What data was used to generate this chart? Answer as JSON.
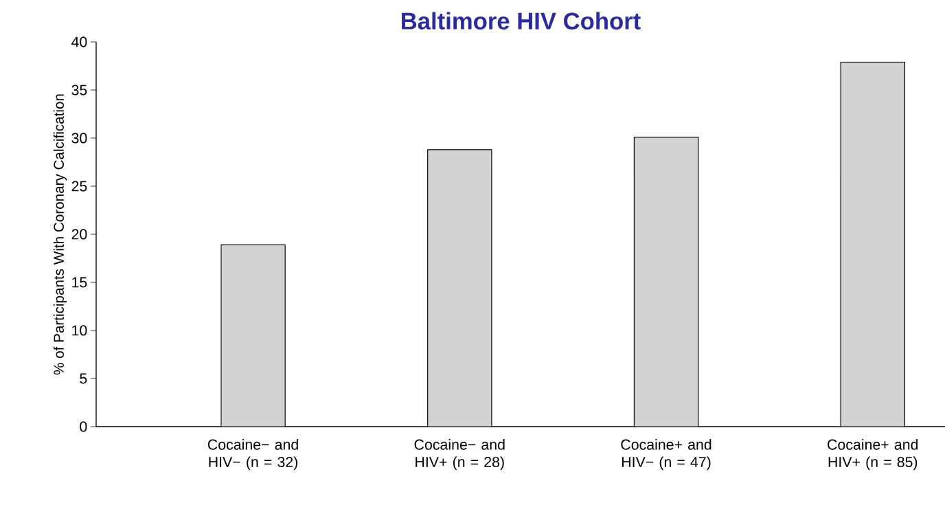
{
  "chart_data": {
    "type": "bar",
    "title": "Baltimore HIV Cohort",
    "ylabel": "% of Participants With Coronary Calcification",
    "categories": [
      "Cocaine− and HIV− (n = 32)",
      "Cocaine− and HIV+ (n = 28)",
      "Cocaine+ and HIV− (n = 47)",
      "Cocaine+ and HIV+ (n = 85)"
    ],
    "values": [
      18.9,
      28.8,
      30.1,
      37.9
    ],
    "color": "#d3d3d3",
    "ylim": [
      0,
      40
    ],
    "yticks": [
      0,
      5,
      10,
      15,
      20,
      25,
      30,
      35,
      40
    ],
    "grid": false
  }
}
